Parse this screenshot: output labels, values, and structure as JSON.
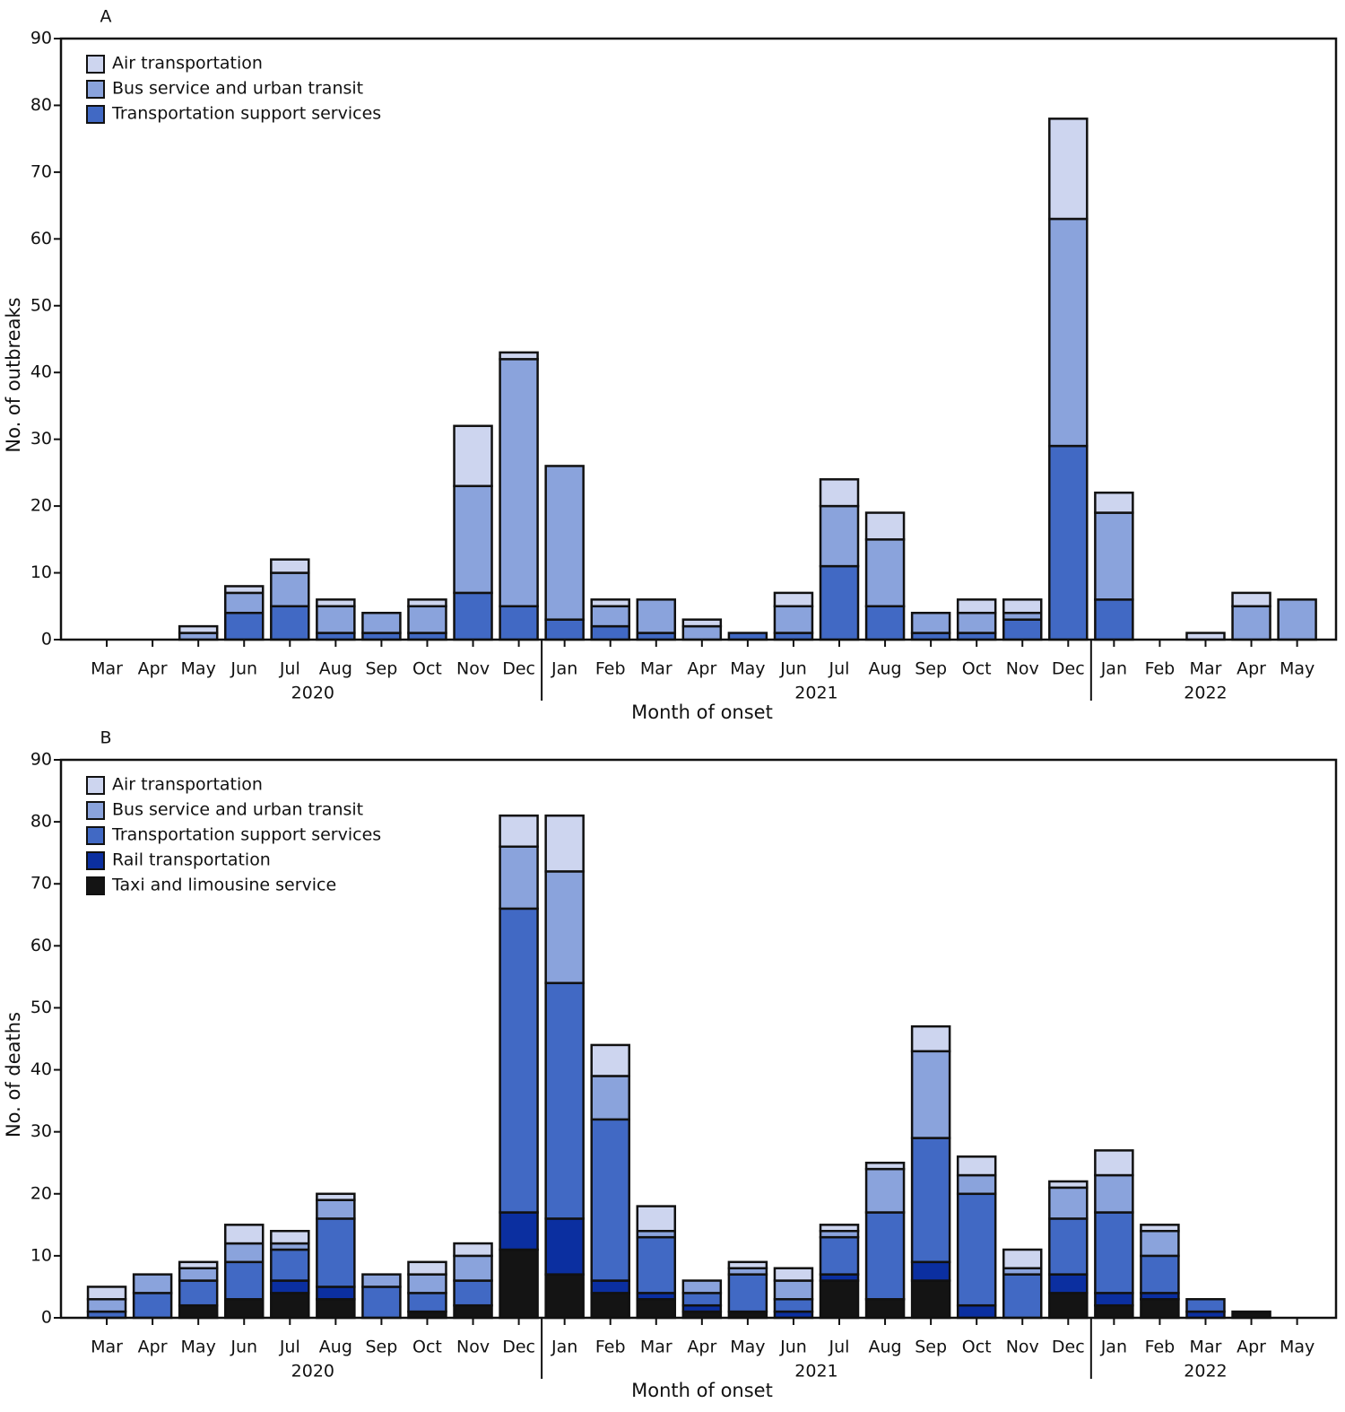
{
  "chart_data": [
    {
      "type": "stacked_bar",
      "panel": "A",
      "ylabel": "No. of outbreaks",
      "xlabel": "Month of onset",
      "categories": [
        "Mar",
        "Apr",
        "May",
        "Jun",
        "Jul",
        "Aug",
        "Sep",
        "Oct",
        "Nov",
        "Dec",
        "Jan",
        "Feb",
        "Mar",
        "Apr",
        "May",
        "Jun",
        "Jul",
        "Aug",
        "Sep",
        "Oct",
        "Nov",
        "Dec",
        "Jan",
        "Feb",
        "Mar",
        "Apr",
        "May"
      ],
      "years": [
        {
          "label": "2020",
          "months": 10
        },
        {
          "label": "2021",
          "months": 12
        },
        {
          "label": "2022",
          "months": 5
        }
      ],
      "ylim": [
        0,
        90
      ],
      "yticks": [
        0,
        10,
        20,
        30,
        40,
        50,
        60,
        70,
        80,
        90
      ],
      "legend": "upper-left",
      "series": [
        {
          "name": "Air transportation",
          "color": "#cdd5ef",
          "values": [
            0,
            0,
            1,
            1,
            2,
            1,
            0,
            1,
            9,
            1,
            0,
            1,
            0,
            1,
            0,
            2,
            4,
            4,
            0,
            2,
            2,
            15,
            3,
            0,
            1,
            2,
            0
          ]
        },
        {
          "name": "Bus service and urban transit",
          "color": "#8aa3dc",
          "values": [
            0,
            0,
            1,
            3,
            5,
            4,
            3,
            4,
            16,
            37,
            23,
            3,
            5,
            2,
            0,
            4,
            9,
            10,
            3,
            3,
            1,
            34,
            13,
            0,
            0,
            5,
            6
          ]
        },
        {
          "name": "Transportation support services",
          "color": "#4169c4",
          "values": [
            0,
            0,
            0,
            4,
            5,
            1,
            1,
            1,
            7,
            5,
            3,
            2,
            1,
            0,
            1,
            1,
            11,
            5,
            1,
            1,
            3,
            29,
            6,
            0,
            0,
            0,
            0
          ]
        }
      ]
    },
    {
      "type": "stacked_bar",
      "panel": "B",
      "ylabel": "No. of deaths",
      "xlabel": "Month of onset",
      "categories": [
        "Mar",
        "Apr",
        "May",
        "Jun",
        "Jul",
        "Aug",
        "Sep",
        "Oct",
        "Nov",
        "Dec",
        "Jan",
        "Feb",
        "Mar",
        "Apr",
        "May",
        "Jun",
        "Jul",
        "Aug",
        "Sep",
        "Oct",
        "Nov",
        "Dec",
        "Jan",
        "Feb",
        "Mar",
        "Apr",
        "May"
      ],
      "years": [
        {
          "label": "2020",
          "months": 10
        },
        {
          "label": "2021",
          "months": 12
        },
        {
          "label": "2022",
          "months": 5
        }
      ],
      "ylim": [
        0,
        90
      ],
      "yticks": [
        0,
        10,
        20,
        30,
        40,
        50,
        60,
        70,
        80,
        90
      ],
      "legend": "upper-left",
      "series": [
        {
          "name": "Air transportation",
          "color": "#cdd5ef",
          "values": [
            2,
            0,
            1,
            3,
            2,
            1,
            0,
            2,
            2,
            5,
            9,
            5,
            4,
            0,
            1,
            2,
            1,
            1,
            4,
            3,
            3,
            1,
            4,
            1,
            0,
            0,
            0
          ]
        },
        {
          "name": "Bus service and urban transit",
          "color": "#8aa3dc",
          "values": [
            2,
            3,
            2,
            3,
            1,
            3,
            2,
            3,
            4,
            10,
            18,
            7,
            1,
            2,
            1,
            3,
            1,
            7,
            14,
            3,
            1,
            5,
            6,
            4,
            0,
            0,
            0
          ]
        },
        {
          "name": "Transportation support services",
          "color": "#4169c4",
          "values": [
            1,
            4,
            4,
            6,
            5,
            11,
            5,
            3,
            4,
            49,
            38,
            26,
            9,
            2,
            6,
            2,
            6,
            14,
            20,
            18,
            7,
            9,
            13,
            6,
            2,
            0,
            0
          ]
        },
        {
          "name": "Rail transportation",
          "color": "#0b2fa0",
          "values": [
            0,
            0,
            0,
            0,
            2,
            2,
            0,
            0,
            0,
            6,
            9,
            2,
            1,
            1,
            0,
            1,
            1,
            0,
            3,
            2,
            0,
            3,
            2,
            1,
            1,
            0,
            0
          ]
        },
        {
          "name": "Taxi and limousine service",
          "color": "#141414",
          "values": [
            0,
            0,
            2,
            3,
            4,
            3,
            0,
            1,
            2,
            11,
            7,
            4,
            3,
            1,
            1,
            0,
            6,
            3,
            6,
            0,
            0,
            4,
            2,
            3,
            0,
            1,
            0
          ]
        }
      ]
    }
  ]
}
